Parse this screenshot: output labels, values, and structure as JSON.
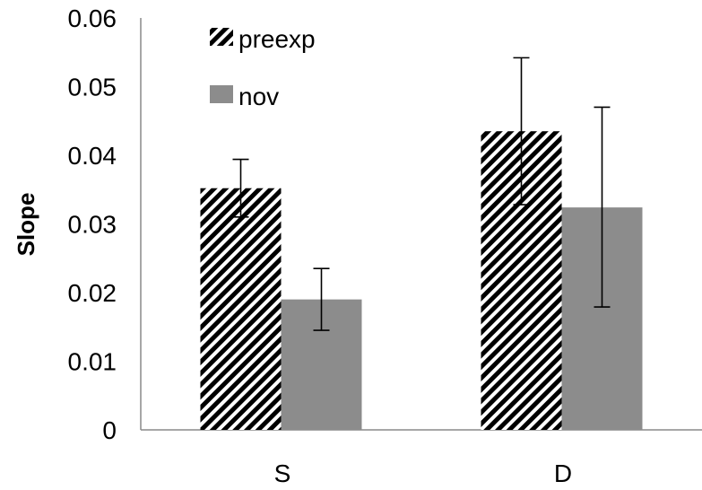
{
  "chart_data": {
    "type": "bar",
    "title": "",
    "xlabel": "",
    "ylabel": "Slope",
    "ylim": [
      0,
      0.06
    ],
    "yticks": [
      "0",
      "0.01",
      "0.02",
      "0.03",
      "0.04",
      "0.05",
      "0.06"
    ],
    "categories": [
      "S",
      "D"
    ],
    "series": [
      {
        "name": "preexp",
        "pattern": "diagonal-hatch",
        "color": "#000000",
        "values": [
          0.0352,
          0.0435
        ],
        "error_low": [
          0.031,
          0.0328
        ],
        "error_high": [
          0.0394,
          0.0542
        ]
      },
      {
        "name": "nov",
        "pattern": "solid",
        "color": "#8c8c8c",
        "values": [
          0.019,
          0.0324
        ],
        "error_low": [
          0.0145,
          0.0179
        ],
        "error_high": [
          0.0235,
          0.047
        ]
      }
    ],
    "grid": false,
    "legend_position": "top-left"
  }
}
